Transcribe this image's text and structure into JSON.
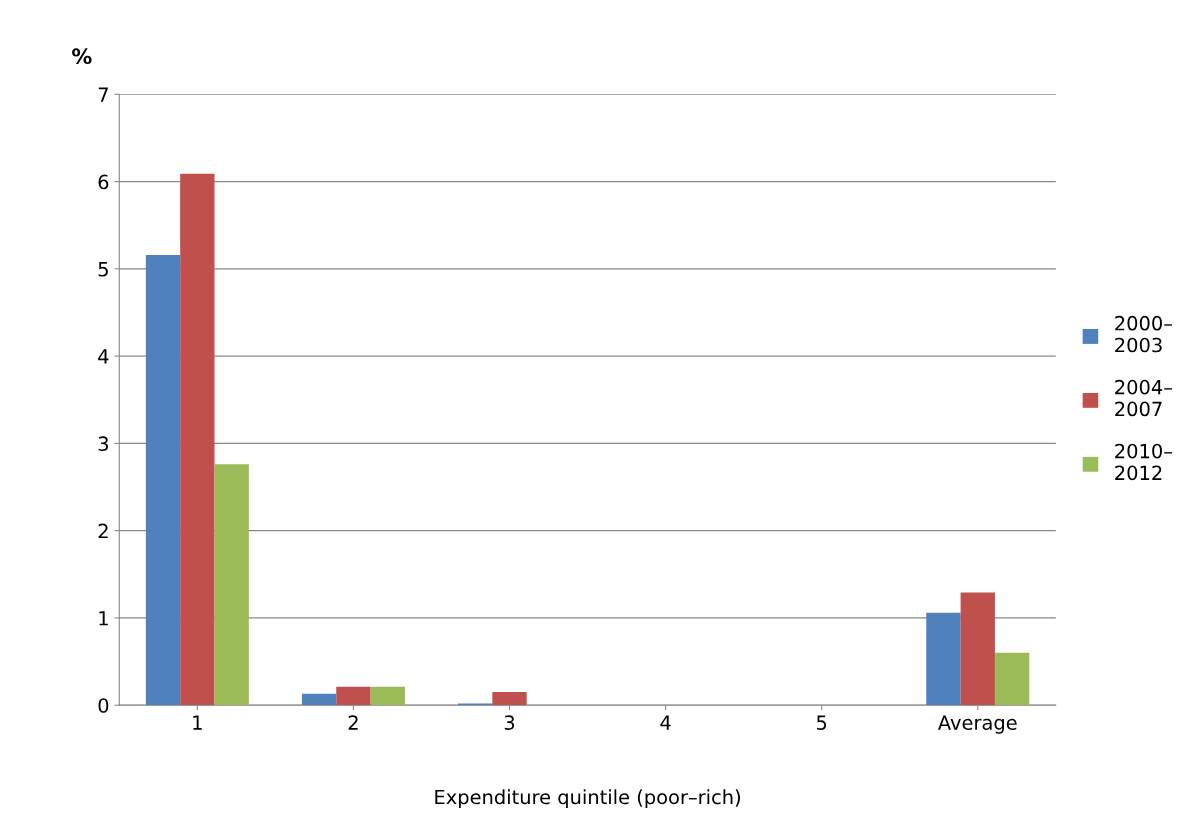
{
  "chart_data": {
    "type": "bar",
    "xlabel": "Expenditure quintile (poor–rich)",
    "ylabel": "%",
    "categories": [
      "1",
      "2",
      "3",
      "4",
      "5",
      "Average"
    ],
    "series": [
      {
        "name": "2000–\n2003",
        "color": "#4f81bd",
        "values": [
          5.16,
          0.13,
          0.02,
          0,
          0,
          1.06
        ]
      },
      {
        "name": "2004–\n2007",
        "color": "#c0504d",
        "values": [
          6.09,
          0.21,
          0.15,
          0,
          0,
          1.29
        ]
      },
      {
        "name": "2010–\n2012",
        "color": "#9bbb59",
        "values": [
          2.76,
          0.21,
          0,
          0,
          0,
          0.6
        ]
      }
    ],
    "ylim": [
      0,
      7
    ],
    "yticks": [
      0,
      1,
      2,
      3,
      4,
      5,
      6,
      7
    ],
    "grid": "y",
    "legend": "right"
  }
}
